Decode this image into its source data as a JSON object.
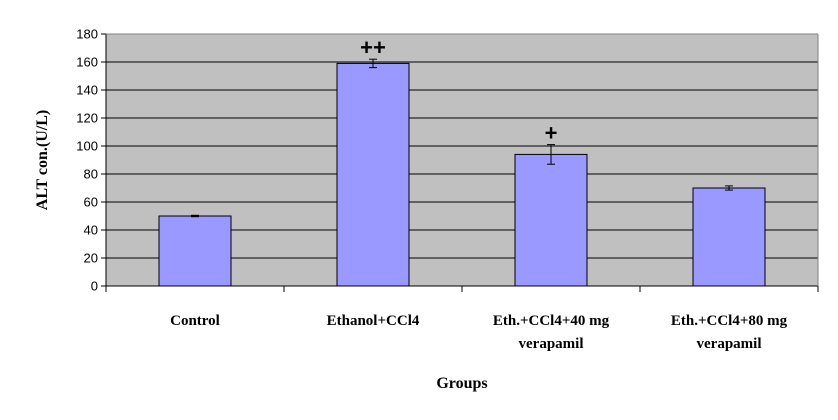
{
  "chart_data": {
    "type": "bar",
    "title": "",
    "xlabel": "Groups",
    "ylabel": "ALT con.(U/L)",
    "ylim": [
      0,
      180
    ],
    "ytick_step": 20,
    "grid": true,
    "categories": [
      [
        "Control"
      ],
      [
        "Ethanol+CCl4"
      ],
      [
        "Eth.+CCl4+40 mg",
        "verapamil"
      ],
      [
        "Eth.+CCl4+80 mg",
        "verapamil"
      ]
    ],
    "values": [
      50,
      159,
      94,
      70
    ],
    "error": [
      0.5,
      3,
      7,
      1.5
    ],
    "annotations": [
      "",
      "++",
      "+",
      ""
    ],
    "colors": {
      "bar_fill": "#9999ff",
      "plot_background": "#c0c0c0",
      "grid": "#000000"
    }
  }
}
